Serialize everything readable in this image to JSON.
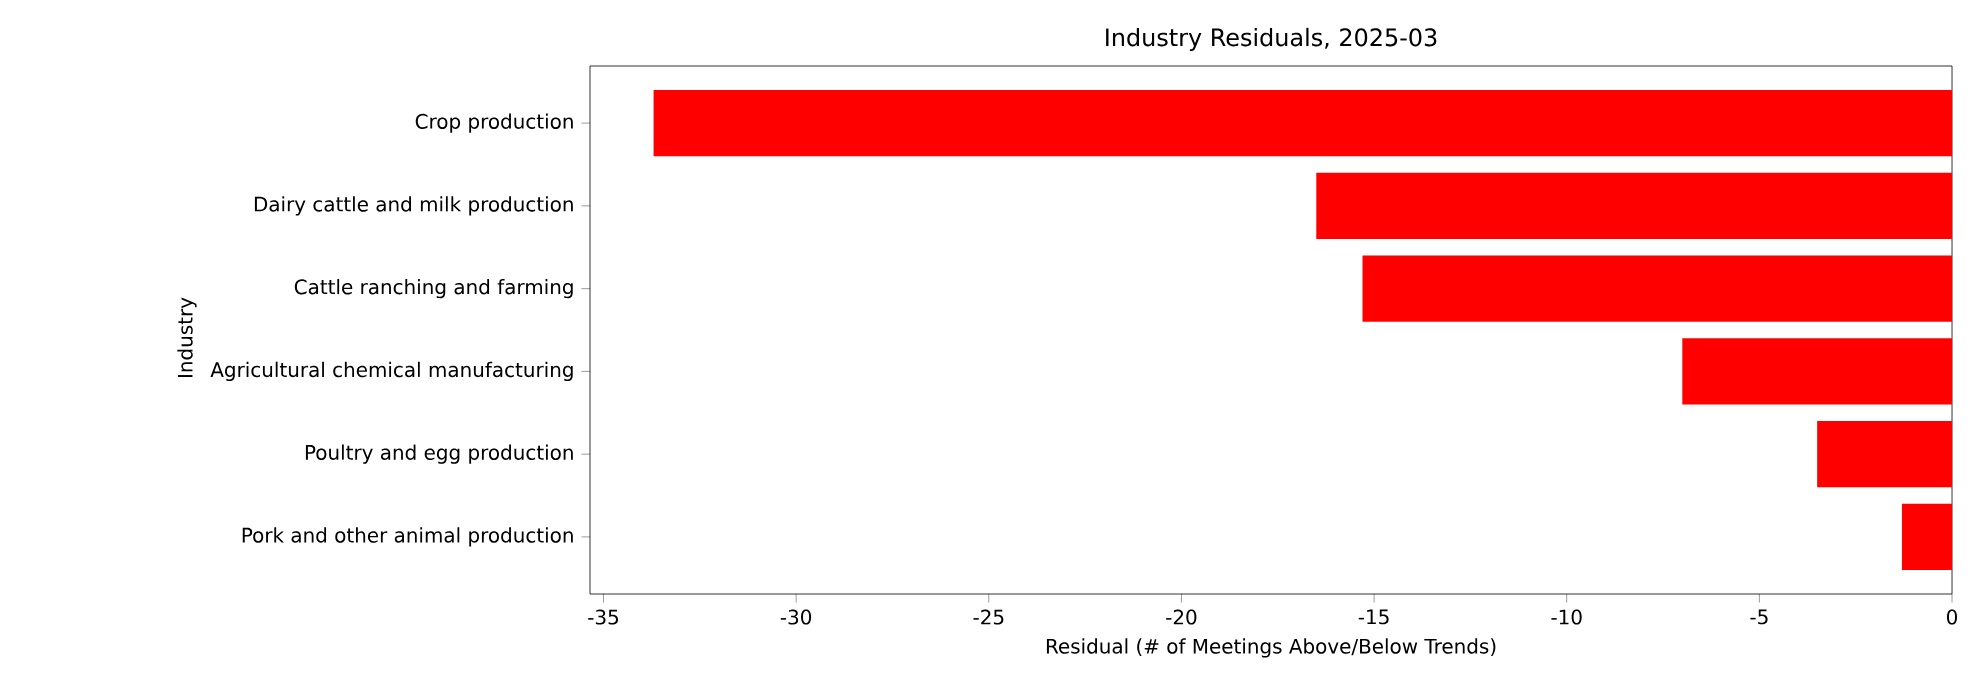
{
  "chart_data": {
    "type": "bar",
    "orientation": "horizontal",
    "title": "Industry Residuals, 2025-03",
    "xlabel": "Residual (# of Meetings Above/Below Trends)",
    "ylabel": "Industry",
    "categories": [
      "Crop production",
      "Dairy cattle and milk production",
      "Cattle ranching and farming",
      "Agricultural chemical manufacturing",
      "Poultry and egg production",
      "Pork and other animal production"
    ],
    "values": [
      -33.7,
      -16.5,
      -15.3,
      -7.0,
      -3.5,
      -1.3
    ],
    "color": "#ff0000",
    "xlim": [
      -35.35,
      0
    ],
    "xticks": [
      -35,
      -30,
      -25,
      -20,
      -15,
      -10,
      -5,
      0
    ],
    "grid": false
  }
}
